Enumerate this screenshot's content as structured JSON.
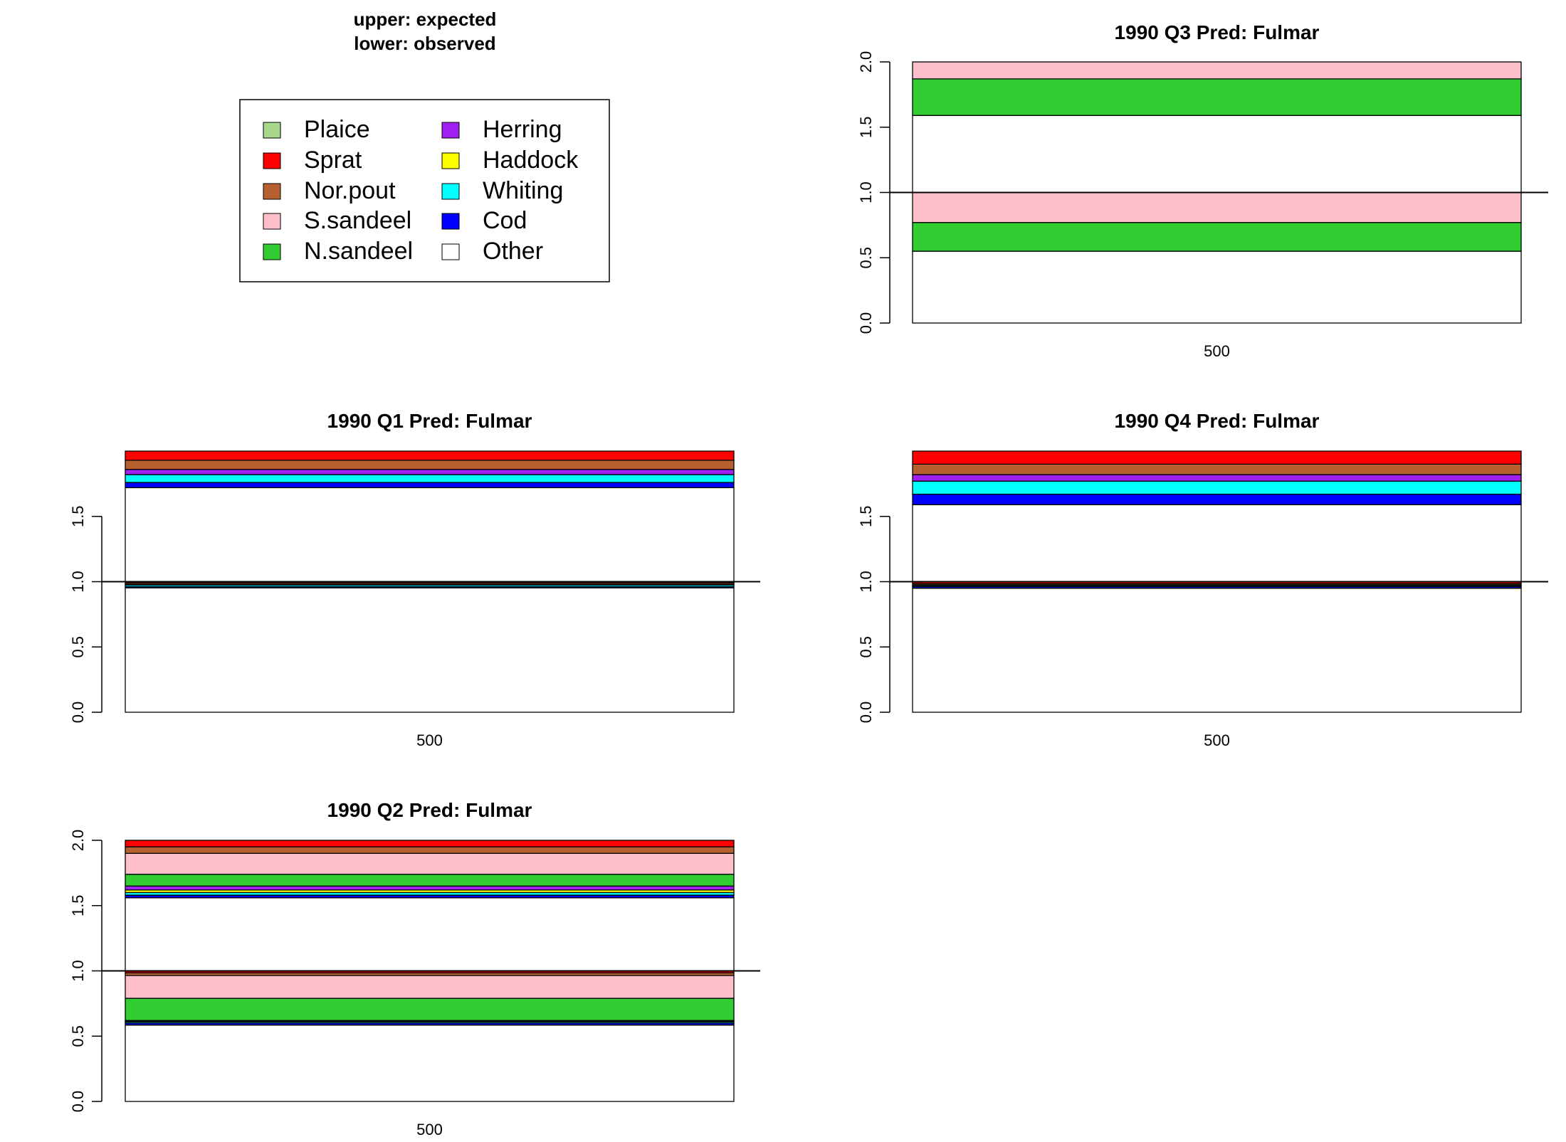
{
  "header": {
    "line1": "upper: expected",
    "line2": "lower: observed"
  },
  "legend": {
    "items": [
      {
        "label": "Plaice",
        "color": "#a8d88a"
      },
      {
        "label": "Sprat",
        "color": "#ff0000"
      },
      {
        "label": "Nor.pout",
        "color": "#b5602e"
      },
      {
        "label": "S.sandeel",
        "color": "#ffc0cb"
      },
      {
        "label": "N.sandeel",
        "color": "#32cd32"
      },
      {
        "label": "Herring",
        "color": "#a020f0"
      },
      {
        "label": "Haddock",
        "color": "#ffff00"
      },
      {
        "label": "Whiting",
        "color": "#00ffff"
      },
      {
        "label": "Cod",
        "color": "#0000ff"
      },
      {
        "label": "Other",
        "color": "#ffffff"
      }
    ]
  },
  "chart_data": [
    {
      "type": "bar",
      "title": "1990 Q3  Pred: Fulmar",
      "categories": [
        "500"
      ],
      "ylim": [
        0,
        2
      ],
      "yticks": [
        "0.0",
        "0.5",
        "1.0",
        "1.5",
        "2.0"
      ],
      "reference_line": 1.0,
      "lower_stack": [
        {
          "series": "Other",
          "from": 0.0,
          "to": 0.55
        },
        {
          "series": "N.sandeel",
          "from": 0.55,
          "to": 0.77
        },
        {
          "series": "S.sandeel",
          "from": 0.77,
          "to": 1.0
        }
      ],
      "upper_stack": [
        {
          "series": "Other",
          "from": 1.0,
          "to": 1.59
        },
        {
          "series": "N.sandeel",
          "from": 1.59,
          "to": 1.87
        },
        {
          "series": "S.sandeel",
          "from": 1.87,
          "to": 2.0
        }
      ]
    },
    {
      "type": "bar",
      "title": "1990 Q1  Pred: Fulmar",
      "categories": [
        "500"
      ],
      "ylim": [
        0,
        2
      ],
      "yticks": [
        "0.0",
        "0.5",
        "1.0",
        "1.5"
      ],
      "reference_line": 1.0,
      "lower_stack": [
        {
          "series": "Other",
          "from": 0.0,
          "to": 0.953
        },
        {
          "series": "Cod",
          "from": 0.953,
          "to": 0.962
        },
        {
          "series": "Whiting",
          "from": 0.962,
          "to": 0.975
        },
        {
          "series": "Herring",
          "from": 0.975,
          "to": 0.98
        },
        {
          "series": "Nor.pout",
          "from": 0.98,
          "to": 0.99
        },
        {
          "series": "Sprat",
          "from": 0.99,
          "to": 1.0
        }
      ],
      "upper_stack": [
        {
          "series": "Other",
          "from": 1.0,
          "to": 1.72
        },
        {
          "series": "Cod",
          "from": 1.72,
          "to": 1.76
        },
        {
          "series": "Whiting",
          "from": 1.76,
          "to": 1.82
        },
        {
          "series": "Herring",
          "from": 1.82,
          "to": 1.86
        },
        {
          "series": "Nor.pout",
          "from": 1.86,
          "to": 1.93
        },
        {
          "series": "Sprat",
          "from": 1.93,
          "to": 2.0
        }
      ]
    },
    {
      "type": "bar",
      "title": "1990 Q4  Pred: Fulmar",
      "categories": [
        "500"
      ],
      "ylim": [
        0,
        2
      ],
      "yticks": [
        "0.0",
        "0.5",
        "1.0",
        "1.5"
      ],
      "reference_line": 1.0,
      "lower_stack": [
        {
          "series": "Other",
          "from": 0.0,
          "to": 0.95
        },
        {
          "series": "Cod",
          "from": 0.95,
          "to": 0.962
        },
        {
          "series": "Whiting",
          "from": 0.962,
          "to": 0.97
        },
        {
          "series": "Herring",
          "from": 0.97,
          "to": 0.976
        },
        {
          "series": "Nor.pout",
          "from": 0.976,
          "to": 0.986
        },
        {
          "series": "Sprat",
          "from": 0.986,
          "to": 1.0
        }
      ],
      "upper_stack": [
        {
          "series": "Other",
          "from": 1.0,
          "to": 1.59
        },
        {
          "series": "Cod",
          "from": 1.59,
          "to": 1.67
        },
        {
          "series": "Whiting",
          "from": 1.67,
          "to": 1.77
        },
        {
          "series": "Herring",
          "from": 1.77,
          "to": 1.82
        },
        {
          "series": "Nor.pout",
          "from": 1.82,
          "to": 1.9
        },
        {
          "series": "Sprat",
          "from": 1.9,
          "to": 2.0
        }
      ]
    },
    {
      "type": "bar",
      "title": "1990 Q2  Pred: Fulmar",
      "categories": [
        "500"
      ],
      "ylim": [
        0,
        2
      ],
      "yticks": [
        "0.0",
        "0.5",
        "1.0",
        "1.5",
        "2.0"
      ],
      "reference_line": 1.0,
      "lower_stack": [
        {
          "series": "Other",
          "from": 0.0,
          "to": 0.585
        },
        {
          "series": "Cod",
          "from": 0.585,
          "to": 0.6
        },
        {
          "series": "Whiting",
          "from": 0.6,
          "to": 0.61
        },
        {
          "series": "Haddock",
          "from": 0.61,
          "to": 0.615
        },
        {
          "series": "Herring",
          "from": 0.615,
          "to": 0.62
        },
        {
          "series": "N.sandeel",
          "from": 0.62,
          "to": 0.79
        },
        {
          "series": "S.sandeel",
          "from": 0.79,
          "to": 0.965
        },
        {
          "series": "Nor.pout",
          "from": 0.965,
          "to": 0.985
        },
        {
          "series": "Sprat",
          "from": 0.985,
          "to": 1.0
        }
      ],
      "upper_stack": [
        {
          "series": "Other",
          "from": 1.0,
          "to": 1.56
        },
        {
          "series": "Cod",
          "from": 1.56,
          "to": 1.58
        },
        {
          "series": "Whiting",
          "from": 1.58,
          "to": 1.6
        },
        {
          "series": "Haddock",
          "from": 1.6,
          "to": 1.62
        },
        {
          "series": "Herring",
          "from": 1.62,
          "to": 1.65
        },
        {
          "series": "N.sandeel",
          "from": 1.65,
          "to": 1.74
        },
        {
          "series": "S.sandeel",
          "from": 1.74,
          "to": 1.9
        },
        {
          "series": "Nor.pout",
          "from": 1.9,
          "to": 1.95
        },
        {
          "series": "Sprat",
          "from": 1.95,
          "to": 2.0
        }
      ]
    }
  ]
}
